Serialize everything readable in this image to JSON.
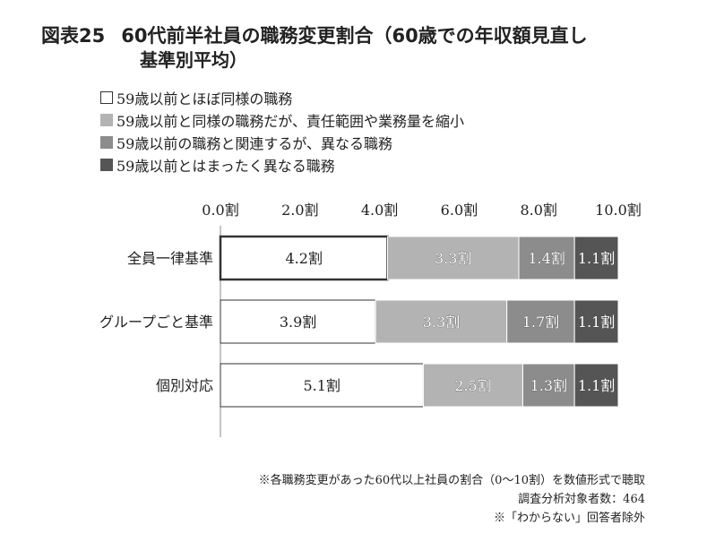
{
  "title": {
    "label": "図表25",
    "main": "60代前半社員の職務変更割合（60歳での年収額見直し",
    "sub": "基準別平均）"
  },
  "colors": {
    "s1": "#ffffff",
    "s2": "#b3b3b3",
    "s3": "#8c8c8c",
    "s4": "#555555",
    "border": "#333333"
  },
  "chart_data": {
    "type": "bar",
    "orientation": "horizontal",
    "stacked": true,
    "unit": "割",
    "categories": [
      "全員一律基準",
      "グループごと基準",
      "個別対応"
    ],
    "series": [
      {
        "name": "59歳以前とほぼ同様の職務",
        "values": [
          4.2,
          3.9,
          5.1
        ]
      },
      {
        "name": "59歳以前と同様の職務だが、責任範囲や業務量を縮小",
        "values": [
          3.3,
          3.3,
          2.5
        ]
      },
      {
        "name": "59歳以前の職務と関連するが、異なる職務",
        "values": [
          1.4,
          1.7,
          1.3
        ]
      },
      {
        "name": "59歳以前とはまったく異なる職務",
        "values": [
          1.1,
          1.1,
          1.1
        ]
      }
    ],
    "x_ticks": [
      "0.0割",
      "2.0割",
      "4.0割",
      "6.0割",
      "8.0割",
      "10.0割"
    ],
    "xlim": [
      0,
      10
    ],
    "data_labels": [
      [
        "4.2割",
        "3.9割",
        "5.1割"
      ],
      [
        "3.3割",
        "3.3割",
        "2.5割"
      ],
      [
        "1.4割",
        "1.7割",
        "1.3割"
      ],
      [
        "1.1割",
        "1.1割",
        "1.1割"
      ]
    ],
    "legend_position": "top-left",
    "highlighted_bar": 0
  },
  "notes": [
    "※各職務変更があった60代以上社員の割合（0～10割）を数値形式で聴取",
    "調査分析対象者数：464",
    "※「わからない」回答者除外"
  ]
}
